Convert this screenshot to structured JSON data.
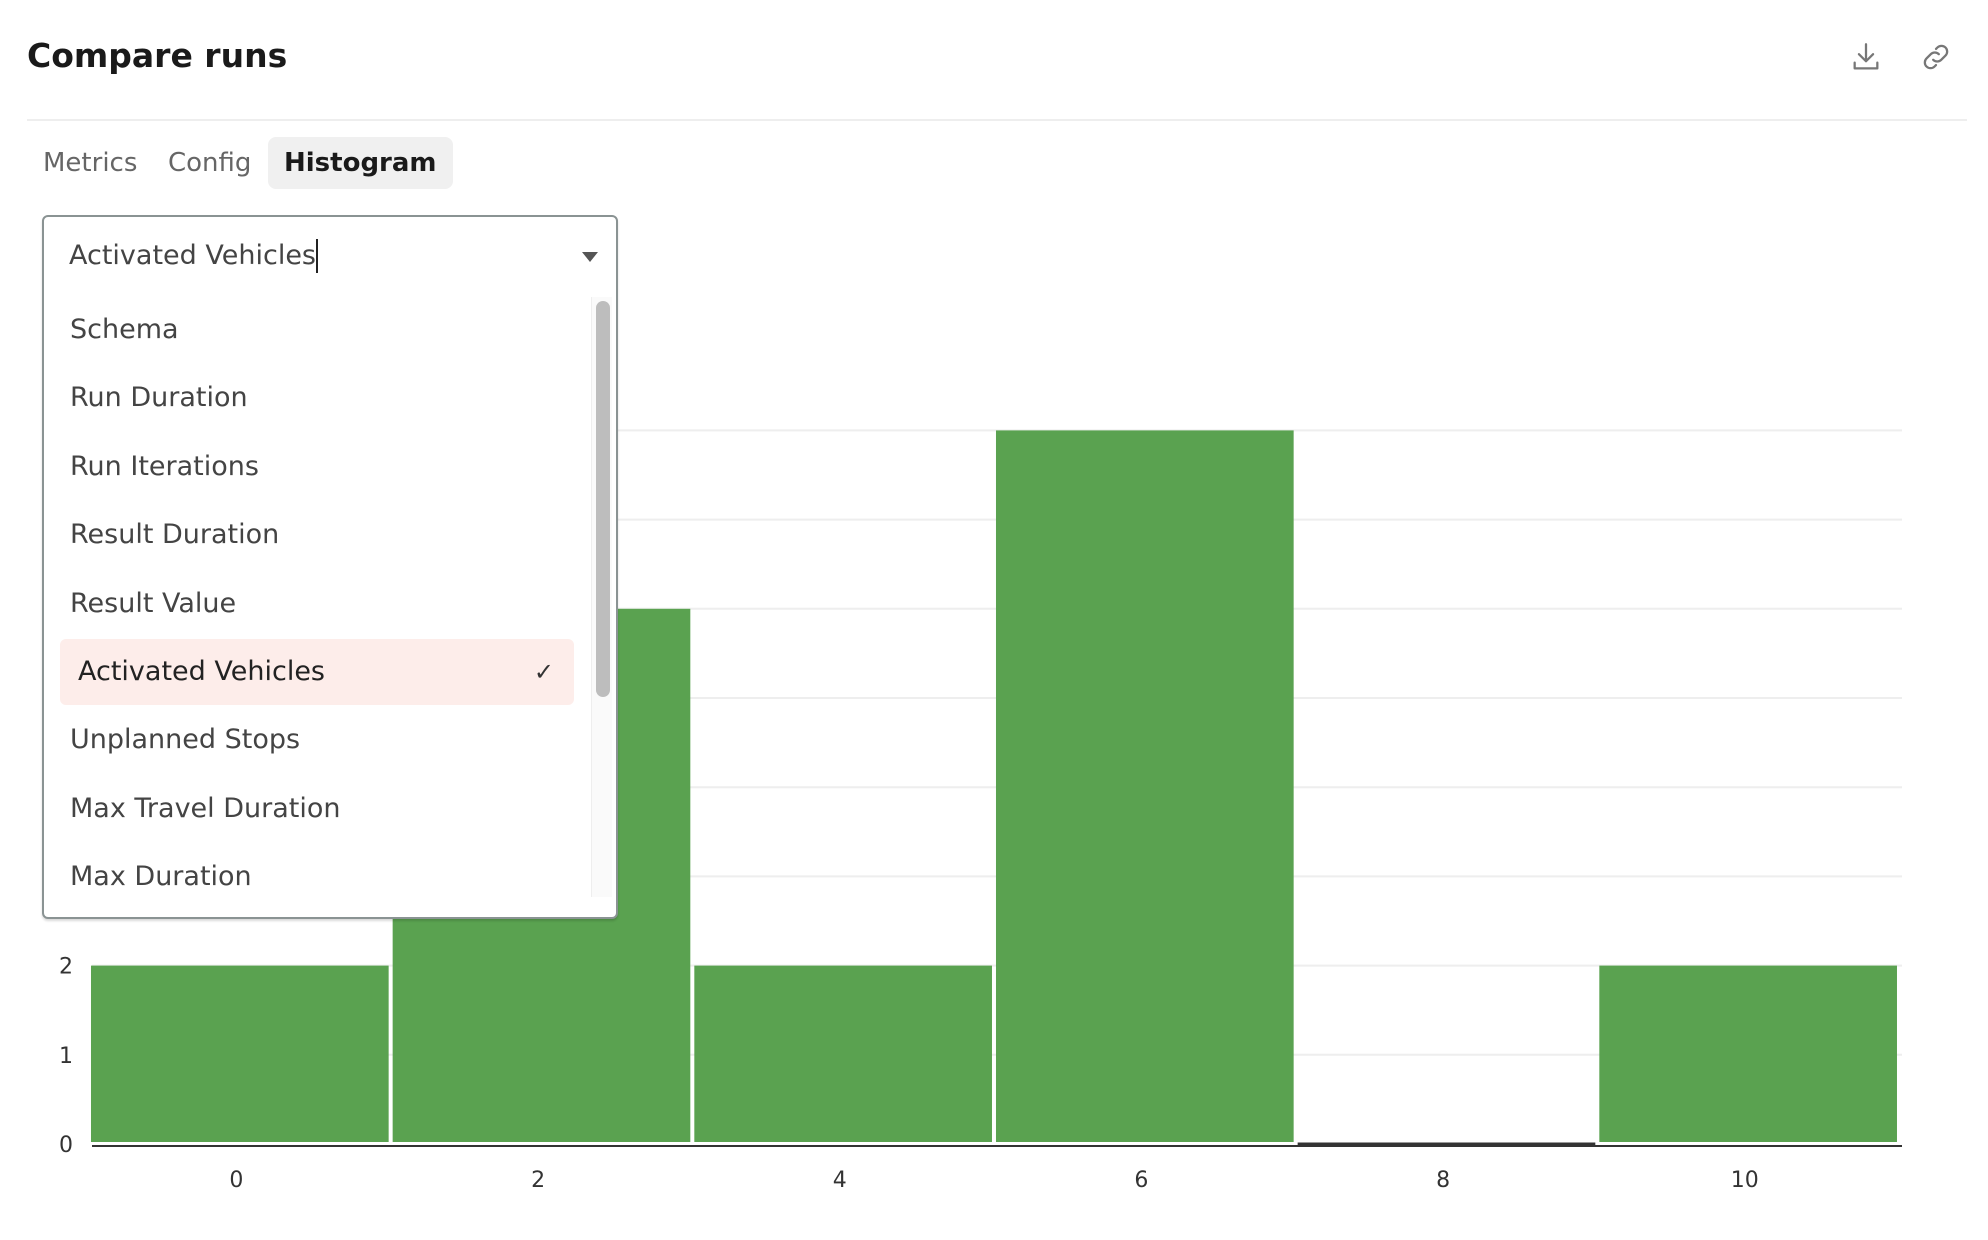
{
  "header": {
    "title": "Compare runs",
    "icons": [
      "download-icon",
      "link-icon"
    ]
  },
  "tabs": [
    {
      "label": "Metrics",
      "active": false
    },
    {
      "label": "Config",
      "active": false
    },
    {
      "label": "Histogram",
      "active": true
    }
  ],
  "dropdown": {
    "value": "Activated Vehicles",
    "options": [
      {
        "label": "Schema"
      },
      {
        "label": "Run Duration"
      },
      {
        "label": "Run Iterations"
      },
      {
        "label": "Result Duration"
      },
      {
        "label": "Result Value"
      },
      {
        "label": "Activated Vehicles",
        "selected": true,
        "check": "✓"
      },
      {
        "label": "Unplanned Stops"
      },
      {
        "label": "Max Travel Duration"
      },
      {
        "label": "Max Duration"
      }
    ]
  },
  "colors": {
    "bar": "#5aa250",
    "selected_bg": "#fdedea",
    "grid": "#eeeeee"
  },
  "chart_data": {
    "type": "bar",
    "title": "",
    "xlabel": "",
    "ylabel": "",
    "bins": [
      {
        "x0": -0.5,
        "x1": 1.5,
        "count": 2
      },
      {
        "x0": 1.5,
        "x1": 3.5,
        "count": 6
      },
      {
        "x0": 3.5,
        "x1": 5.5,
        "count": 2
      },
      {
        "x0": 5.5,
        "x1": 7.5,
        "count": 8
      },
      {
        "x0": 7.5,
        "x1": 9.5,
        "count": 0
      },
      {
        "x0": 9.5,
        "x1": 11.5,
        "count": 2
      }
    ],
    "x_ticks": [
      "0",
      "2",
      "4",
      "6",
      "8",
      "10"
    ],
    "y_ticks": [
      "0",
      "1",
      "2"
    ],
    "ylim": [
      0,
      8
    ],
    "grid": true
  }
}
